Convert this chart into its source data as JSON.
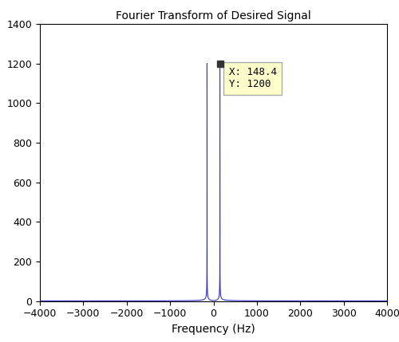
{
  "title": "Fourier Transform of Desired Signal",
  "xlabel": "Frequency (Hz)",
  "ylabel": "",
  "xlim": [
    -4000,
    4000
  ],
  "ylim": [
    0,
    1400
  ],
  "xticks": [
    -4000,
    -3000,
    -2000,
    -1000,
    0,
    1000,
    2000,
    3000,
    4000
  ],
  "yticks": [
    0,
    200,
    400,
    600,
    800,
    1000,
    1200,
    1400
  ],
  "peak_freq": 148.4,
  "peak_value": 1200,
  "line_color": "#3333CC",
  "annotation_text": "X: 148.4\nY: 1200",
  "annotation_box_color": "#FFFFCC",
  "annotation_box_edge": "#AAAAAA",
  "marker_color": "#333333",
  "fs": 8000,
  "signal_freq": 148.4,
  "background_color": "#ffffff",
  "title_fontsize": 10
}
